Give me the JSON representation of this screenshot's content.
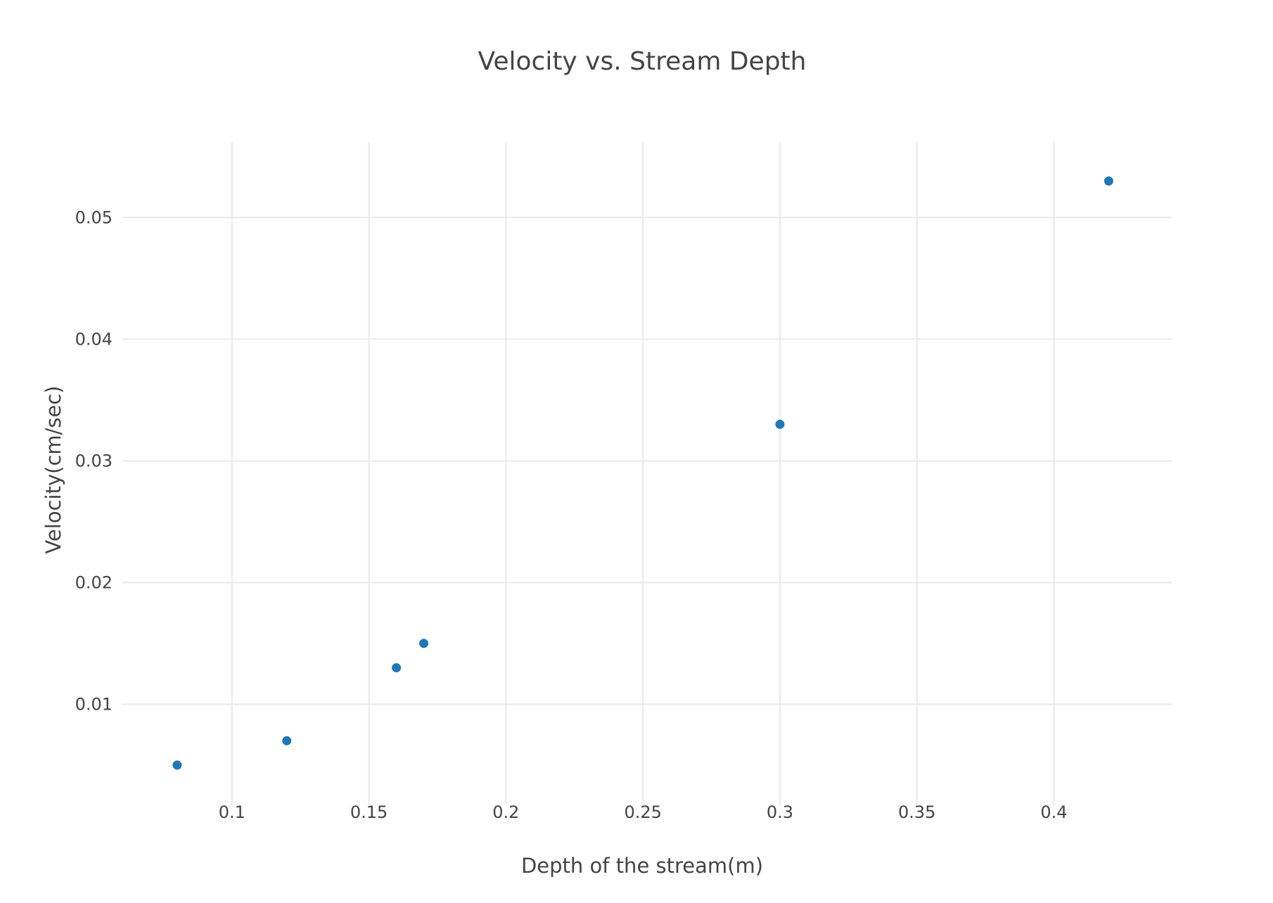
{
  "chart_data": {
    "type": "scatter",
    "title": "Velocity vs. Stream Depth",
    "xlabel": "Depth of the stream(m)",
    "ylabel": "Velocity(cm/sec)",
    "xlim": [
      0.06,
      0.443
    ],
    "ylim": [
      0.0017,
      0.0562
    ],
    "x_ticks": [
      {
        "value": 0.1,
        "label": "0.1"
      },
      {
        "value": 0.15,
        "label": "0.15"
      },
      {
        "value": 0.2,
        "label": "0.2"
      },
      {
        "value": 0.25,
        "label": "0.25"
      },
      {
        "value": 0.3,
        "label": "0.3"
      },
      {
        "value": 0.35,
        "label": "0.35"
      },
      {
        "value": 0.4,
        "label": "0.4"
      }
    ],
    "y_ticks": [
      {
        "value": 0.01,
        "label": "0.01"
      },
      {
        "value": 0.02,
        "label": "0.02"
      },
      {
        "value": 0.03,
        "label": "0.03"
      },
      {
        "value": 0.04,
        "label": "0.04"
      },
      {
        "value": 0.05,
        "label": "0.05"
      }
    ],
    "grid": true,
    "marker_color": "#1f77b4",
    "series": [
      {
        "points": [
          {
            "x": 0.08,
            "y": 0.005
          },
          {
            "x": 0.12,
            "y": 0.007
          },
          {
            "x": 0.16,
            "y": 0.013
          },
          {
            "x": 0.17,
            "y": 0.015
          },
          {
            "x": 0.3,
            "y": 0.033
          },
          {
            "x": 0.42,
            "y": 0.053
          }
        ]
      }
    ]
  }
}
